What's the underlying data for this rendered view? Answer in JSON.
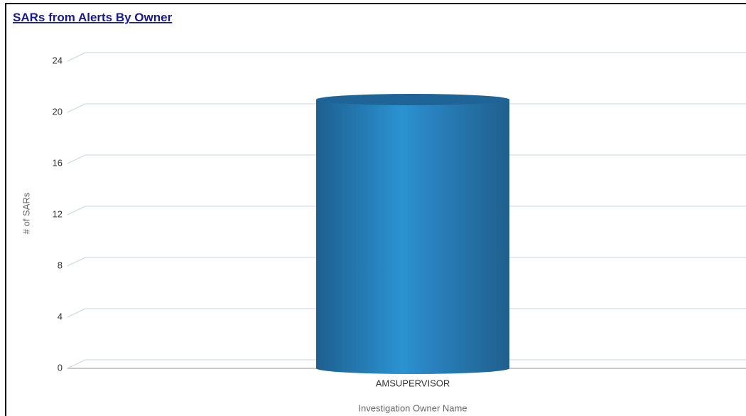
{
  "chart_data": {
    "type": "bar",
    "title": "SARs from Alerts By Owner",
    "categories": [
      "AMSUPERVISOR"
    ],
    "values": [
      21
    ],
    "color": "#2b8ac6",
    "y_label": "# of SARs",
    "x_label": "Investigation Owner Name",
    "ylim": [
      0,
      24
    ],
    "yticks": [
      0,
      4,
      8,
      12,
      16,
      20,
      24
    ],
    "grid": true
  }
}
